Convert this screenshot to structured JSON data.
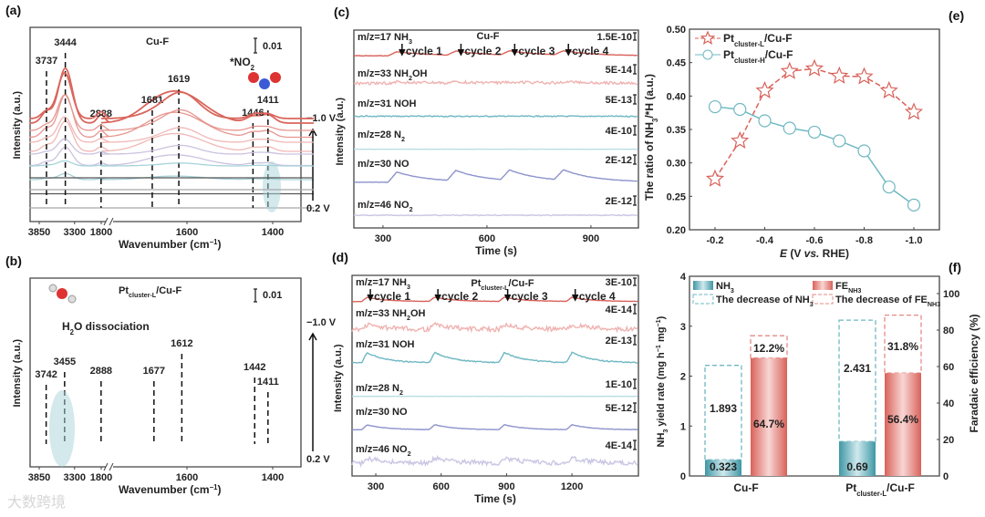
{
  "watermark": "大数跨境",
  "chart_data": [
    {
      "panel": "(a)",
      "type": "line",
      "title": "Cu-F",
      "xlabel": [
        {
          "t": "Wavenumber (cm"
        },
        {
          "t": "−1",
          "sup": true
        },
        {
          "t": ")"
        }
      ],
      "ylabel": "Intensity (a.u.)",
      "xticks_left": [
        "3850",
        "3300"
      ],
      "xticks_right": [
        "1800",
        "1600",
        "1400"
      ],
      "peaks": [
        {
          "label": "3737",
          "w": 3737
        },
        {
          "label": "3444",
          "w": 3444
        },
        {
          "label": "2888",
          "w": 2888
        },
        {
          "label": "1681",
          "w": 1681
        },
        {
          "label": "1619",
          "w": 1619
        },
        {
          "label": "1446",
          "w": 1446
        },
        {
          "label": "1411",
          "w": 1411
        }
      ],
      "scale_bar": "0.01",
      "adsorbate": [
        {
          "t": "*NO"
        },
        {
          "t": "2",
          "sub": true
        }
      ],
      "potential_top": "−1.0 V",
      "potential_bottom": "0.2 V",
      "colors": [
        "#d9665c",
        "#e79690",
        "#f0b8b6",
        "#cbc2df",
        "#a7d3da",
        "#555555",
        "#a8a8a8"
      ]
    },
    {
      "panel": "(b)",
      "type": "line",
      "title": [
        {
          "t": "Pt"
        },
        {
          "t": "cluster-L",
          "sub": true
        },
        {
          "t": "/Cu-F"
        }
      ],
      "xlabel": [
        {
          "t": "Wavenumber (cm"
        },
        {
          "t": "−1",
          "sup": true
        },
        {
          "t": ")"
        }
      ],
      "ylabel": "Intensity (a.u.)",
      "xticks_left": [
        "3850",
        "3300"
      ],
      "xticks_right": [
        "1800",
        "1600",
        "1400"
      ],
      "peaks": [
        {
          "label": "3742",
          "w": 3742
        },
        {
          "label": "3455",
          "w": 3455
        },
        {
          "label": "2888",
          "w": 2888
        },
        {
          "label": "1677",
          "w": 1677
        },
        {
          "label": "1612",
          "w": 1612
        },
        {
          "label": "1442",
          "w": 1442
        },
        {
          "label": "1411",
          "w": 1411
        }
      ],
      "scale_bar": "0.01",
      "annotation": [
        {
          "t": "H"
        },
        {
          "t": "2",
          "sub": true
        },
        {
          "t": "O dissociation"
        }
      ],
      "potential_top": "−1.0 V",
      "potential_bottom": "0.2 V",
      "colors": [
        "#d9665c",
        "#e79690",
        "#f0b8b6",
        "#cbc2df",
        "#a7d3da",
        "#555555",
        "#a8a8a8"
      ]
    },
    {
      "panel": "(c)",
      "type": "line",
      "title": "Cu-F",
      "xlabel": "Time (s)",
      "ylabel": "Intensity (a.u.)",
      "xlim": [
        216,
        1037
      ],
      "xticks": [
        300,
        600,
        900
      ],
      "cycles": [
        {
          "label": "cycle 1",
          "t": 355
        },
        {
          "label": "cycle 2",
          "t": 525
        },
        {
          "label": "cycle 3",
          "t": 680
        },
        {
          "label": "cycle 4",
          "t": 835
        }
      ],
      "series": [
        {
          "name": [
            {
              "t": "m/z=17 NH"
            },
            {
              "t": "3",
              "sub": true
            }
          ],
          "scale": "1.5E-10",
          "color": "#d9625a",
          "amp": 1.0,
          "noise": 0.2
        },
        {
          "name": [
            {
              "t": "m/z=33 NH"
            },
            {
              "t": "2",
              "sub": true
            },
            {
              "t": "OH"
            }
          ],
          "scale": "5E-14",
          "color": "#efb3b1",
          "amp": 0.3,
          "noise": 1.5
        },
        {
          "name": [
            {
              "t": "m/z=31 NOH"
            }
          ],
          "scale": "5E-13",
          "color": "#6fb8c2",
          "amp": 0.0,
          "noise": 0.6
        },
        {
          "name": [
            {
              "t": "m/z=28 N"
            },
            {
              "t": "2",
              "sub": true
            }
          ],
          "scale": "4E-10",
          "color": "#b9dde2",
          "amp": 0.0,
          "noise": 0.1
        },
        {
          "name": [
            {
              "t": "m/z=30 NO"
            }
          ],
          "scale": "2E-12",
          "color": "#8d93cc",
          "amp": 2.5,
          "noise": 0.2
        },
        {
          "name": [
            {
              "t": "m/z=46 NO"
            },
            {
              "t": "2",
              "sub": true
            }
          ],
          "scale": "2E-12",
          "color": "#c9c6e4",
          "amp": 0.0,
          "noise": 0.5
        }
      ]
    },
    {
      "panel": "(d)",
      "type": "line",
      "title": [
        {
          "t": "Pt"
        },
        {
          "t": "cluster-L",
          "sub": true
        },
        {
          "t": "/Cu-F"
        }
      ],
      "xlabel": "Time (s)",
      "ylabel": "Intensity (a.u.)",
      "xlim": [
        191,
        1505
      ],
      "xticks": [
        300,
        600,
        900,
        1200
      ],
      "cycles": [
        {
          "label": "cycle 1",
          "t": 275
        },
        {
          "label": "cycle 2",
          "t": 585
        },
        {
          "label": "cycle 3",
          "t": 905
        },
        {
          "label": "cycle 4",
          "t": 1215
        }
      ],
      "series": [
        {
          "name": [
            {
              "t": "m/z=17 NH"
            },
            {
              "t": "3",
              "sub": true
            }
          ],
          "scale": "3E-10",
          "color": "#d9625a",
          "amp": 1.0,
          "noise": 0.2
        },
        {
          "name": [
            {
              "t": "m/z=33 NH"
            },
            {
              "t": "2",
              "sub": true
            },
            {
              "t": "OH"
            }
          ],
          "scale": "4E-14",
          "color": "#efb3b1",
          "amp": 1.2,
          "noise": 2.5
        },
        {
          "name": [
            {
              "t": "m/z=31 NOH"
            }
          ],
          "scale": "2E-13",
          "color": "#6fb8c2",
          "amp": 2.5,
          "noise": 0.6
        },
        {
          "name": [
            {
              "t": "m/z=28 N"
            },
            {
              "t": "2",
              "sub": true
            }
          ],
          "scale": "1E-10",
          "color": "#b9dde2",
          "amp": 0.0,
          "noise": 0.1
        },
        {
          "name": [
            {
              "t": "m/z=30 NO"
            }
          ],
          "scale": "5E-12",
          "color": "#8d93cc",
          "amp": 1.2,
          "noise": 0.2
        },
        {
          "name": [
            {
              "t": "m/z=46 NO"
            },
            {
              "t": "2",
              "sub": true
            }
          ],
          "scale": "4E-14",
          "color": "#c9c6e4",
          "amp": 1.2,
          "noise": 2.5
        }
      ]
    },
    {
      "panel": "(e)",
      "type": "line",
      "xlabel": [
        {
          "t": "E",
          "i": true
        },
        {
          "t": " (V "
        },
        {
          "t": "vs.",
          "i": true
        },
        {
          "t": " RHE)"
        }
      ],
      "ylabel": [
        {
          "t": "The ratio of NH"
        },
        {
          "t": "3",
          "sub": true
        },
        {
          "t": "/*H (a.u.)"
        }
      ],
      "xlim": [
        -0.1,
        -1.1
      ],
      "ylim": [
        0.2,
        0.5
      ],
      "xticks": [
        "-0.2",
        "-0.4",
        "-0.6",
        "-0.8",
        "-1.0"
      ],
      "yticks": [
        "0.20",
        "0.25",
        "0.30",
        "0.35",
        "0.40",
        "0.45",
        "0.50"
      ],
      "x": [
        -0.2,
        -0.3,
        -0.4,
        -0.5,
        -0.6,
        -0.7,
        -0.8,
        -0.9,
        -1.0
      ],
      "series": [
        {
          "name": [
            {
              "t": "Pt"
            },
            {
              "t": "cluster-L",
              "sub": true
            },
            {
              "t": "/Cu-F"
            }
          ],
          "marker": "star",
          "color": "#d9625a",
          "values": [
            0.276,
            0.333,
            0.408,
            0.437,
            0.441,
            0.43,
            0.429,
            0.408,
            0.376
          ]
        },
        {
          "name": [
            {
              "t": "Pt"
            },
            {
              "t": "cluster-H",
              "sub": true
            },
            {
              "t": "/Cu-F"
            }
          ],
          "marker": "circle",
          "color": "#6fb8c2",
          "values": [
            0.384,
            0.38,
            0.363,
            0.352,
            0.346,
            0.333,
            0.318,
            0.264,
            0.237
          ]
        }
      ],
      "legend": "top-left"
    },
    {
      "panel": "(f)",
      "type": "bar",
      "categories": [
        [
          {
            "t": "Cu-F"
          }
        ],
        [
          {
            "t": "Pt"
          },
          {
            "t": "cluster-L",
            "sub": true
          },
          {
            "t": "/Cu-F"
          }
        ]
      ],
      "ylabel": [
        {
          "t": "NH"
        },
        {
          "t": "3",
          "sub": true
        },
        {
          "t": " yield rate (mg h"
        },
        {
          "t": "−1",
          "sup": true
        },
        {
          "t": " mg"
        },
        {
          "t": "−1",
          "sup": true
        },
        {
          "t": ")"
        }
      ],
      "ylabel_right": "Faradaic efficiency (%)",
      "ylim": [
        0,
        4
      ],
      "ylim_right": [
        0,
        109.5
      ],
      "yticks": [
        "0",
        "1",
        "2",
        "3",
        "4"
      ],
      "yticks_right": [
        "0",
        "20",
        "40",
        "60",
        "80",
        "100"
      ],
      "nh3": {
        "values": [
          0.323,
          0.69
        ],
        "labels": [
          "0.323",
          "0.69"
        ],
        "color": "#4fa3b0"
      },
      "nh3_decrease": {
        "values": [
          1.893,
          2.431
        ],
        "labels": [
          "1.893",
          "2.431"
        ],
        "color": "#6fb8c2"
      },
      "fe": {
        "values": [
          64.7,
          56.4
        ],
        "labels": [
          "64.7%",
          "56.4%"
        ],
        "color": "#e48a86"
      },
      "fe_decrease": {
        "values": [
          12.2,
          31.8
        ],
        "labels": [
          "12.2%",
          "31.8%"
        ],
        "color": "#e48a86"
      },
      "legend": [
        [
          {
            "t": "NH"
          },
          {
            "t": "3",
            "sub": true
          }
        ],
        [
          {
            "t": "FE"
          },
          {
            "t": "NH3",
            "sub": true
          }
        ],
        [
          {
            "t": "The decrease of NH"
          },
          {
            "t": "3",
            "sub": true
          }
        ],
        [
          {
            "t": "The decrease of FE"
          },
          {
            "t": "NH3",
            "sub": true
          }
        ]
      ]
    }
  ]
}
